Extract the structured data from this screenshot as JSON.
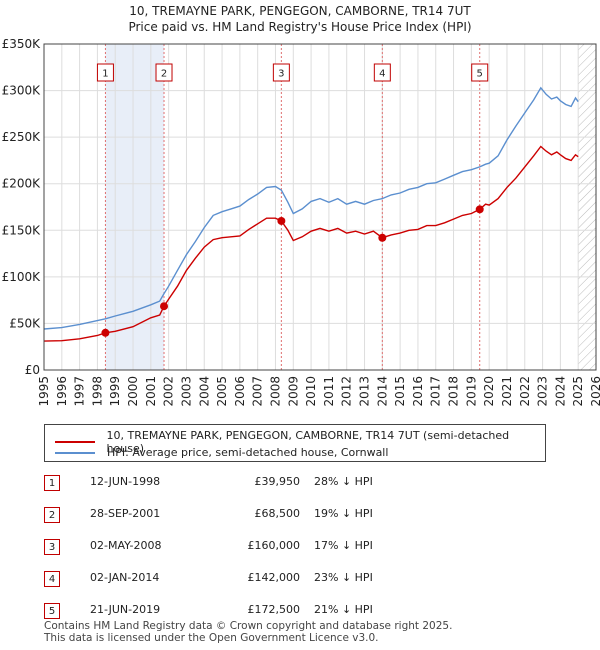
{
  "title_line1": "10, TREMAYNE PARK, PENGEGON, CAMBORNE, TR14 7UT",
  "title_line2": "Price paid vs. HM Land Registry's House Price Index (HPI)",
  "chart_data": {
    "type": "line",
    "xlim": [
      1995,
      2026
    ],
    "ylim": [
      0,
      350000
    ],
    "y_ticks": [
      0,
      50000,
      100000,
      150000,
      200000,
      250000,
      300000,
      350000
    ],
    "y_tick_labels": [
      "£0",
      "£50K",
      "£100K",
      "£150K",
      "£200K",
      "£250K",
      "£300K",
      "£350K"
    ],
    "x_ticks": [
      1995,
      1996,
      1997,
      1998,
      1999,
      2000,
      2001,
      2002,
      2003,
      2004,
      2005,
      2006,
      2007,
      2008,
      2009,
      2010,
      2011,
      2012,
      2013,
      2014,
      2015,
      2016,
      2017,
      2018,
      2019,
      2020,
      2021,
      2022,
      2023,
      2024,
      2025,
      2026
    ],
    "forecast_start": 2025.0,
    "colors": {
      "price_paid": "#cc0000",
      "hpi": "#5b8fcf",
      "sale_line": "#e07070",
      "shade": "#e8eef8",
      "grid": "#dddddd",
      "hatch": "#bbbbbb"
    },
    "series": [
      {
        "name": "10, TREMAYNE PARK, PENGEGON, CAMBORNE, TR14 7UT (semi-detached house)",
        "key": "price_paid",
        "points": [
          [
            1995.0,
            31000
          ],
          [
            1996.0,
            31500
          ],
          [
            1997.0,
            33500
          ],
          [
            1998.0,
            37000
          ],
          [
            1998.45,
            39950
          ],
          [
            1999.0,
            41500
          ],
          [
            2000.0,
            46500
          ],
          [
            2001.0,
            56000
          ],
          [
            2001.5,
            59000
          ],
          [
            2001.74,
            68500
          ],
          [
            2002.0,
            76000
          ],
          [
            2002.5,
            90000
          ],
          [
            2003.0,
            107000
          ],
          [
            2003.5,
            120000
          ],
          [
            2004.0,
            132000
          ],
          [
            2004.5,
            140000
          ],
          [
            2005.0,
            142000
          ],
          [
            2005.5,
            143000
          ],
          [
            2006.0,
            144000
          ],
          [
            2006.5,
            151000
          ],
          [
            2007.0,
            157000
          ],
          [
            2007.5,
            163000
          ],
          [
            2008.0,
            163000
          ],
          [
            2008.33,
            160000
          ],
          [
            2008.7,
            150000
          ],
          [
            2009.0,
            139000
          ],
          [
            2009.5,
            143000
          ],
          [
            2010.0,
            149000
          ],
          [
            2010.5,
            152000
          ],
          [
            2011.0,
            149000
          ],
          [
            2011.5,
            152000
          ],
          [
            2012.0,
            147000
          ],
          [
            2012.5,
            149000
          ],
          [
            2013.0,
            146000
          ],
          [
            2013.5,
            149000
          ],
          [
            2014.0,
            142000
          ],
          [
            2014.5,
            145000
          ],
          [
            2015.0,
            147000
          ],
          [
            2015.5,
            150000
          ],
          [
            2016.0,
            151000
          ],
          [
            2016.5,
            155000
          ],
          [
            2017.0,
            155000
          ],
          [
            2017.5,
            158000
          ],
          [
            2018.0,
            162000
          ],
          [
            2018.5,
            166000
          ],
          [
            2019.0,
            168000
          ],
          [
            2019.47,
            172500
          ],
          [
            2019.8,
            178000
          ],
          [
            2020.0,
            177000
          ],
          [
            2020.5,
            184000
          ],
          [
            2021.0,
            196000
          ],
          [
            2021.5,
            206000
          ],
          [
            2022.0,
            218000
          ],
          [
            2022.5,
            230000
          ],
          [
            2022.9,
            240000
          ],
          [
            2023.2,
            235000
          ],
          [
            2023.5,
            231000
          ],
          [
            2023.8,
            234000
          ],
          [
            2024.0,
            231000
          ],
          [
            2024.3,
            227000
          ],
          [
            2024.6,
            225000
          ],
          [
            2024.85,
            231000
          ],
          [
            2025.0,
            229000
          ]
        ]
      },
      {
        "name": "HPI: Average price, semi-detached house, Cornwall",
        "key": "hpi",
        "points": [
          [
            1995.0,
            44000
          ],
          [
            1996.0,
            45500
          ],
          [
            1997.0,
            49000
          ],
          [
            1998.0,
            53000
          ],
          [
            1998.45,
            55000
          ],
          [
            1999.0,
            58000
          ],
          [
            2000.0,
            63000
          ],
          [
            2001.0,
            70000
          ],
          [
            2001.5,
            74000
          ],
          [
            2001.74,
            82000
          ],
          [
            2002.0,
            90000
          ],
          [
            2002.5,
            107000
          ],
          [
            2003.0,
            124000
          ],
          [
            2003.5,
            138000
          ],
          [
            2004.0,
            153000
          ],
          [
            2004.5,
            166000
          ],
          [
            2005.0,
            170000
          ],
          [
            2005.5,
            173000
          ],
          [
            2006.0,
            176000
          ],
          [
            2006.5,
            183000
          ],
          [
            2007.0,
            189000
          ],
          [
            2007.5,
            196000
          ],
          [
            2008.0,
            197000
          ],
          [
            2008.33,
            193000
          ],
          [
            2008.7,
            180000
          ],
          [
            2009.0,
            168000
          ],
          [
            2009.5,
            173000
          ],
          [
            2010.0,
            181000
          ],
          [
            2010.5,
            184000
          ],
          [
            2011.0,
            180000
          ],
          [
            2011.5,
            184000
          ],
          [
            2012.0,
            178000
          ],
          [
            2012.5,
            181000
          ],
          [
            2013.0,
            178000
          ],
          [
            2013.5,
            182000
          ],
          [
            2014.0,
            184000
          ],
          [
            2014.5,
            188000
          ],
          [
            2015.0,
            190000
          ],
          [
            2015.5,
            194000
          ],
          [
            2016.0,
            196000
          ],
          [
            2016.5,
            200000
          ],
          [
            2017.0,
            201000
          ],
          [
            2017.5,
            205000
          ],
          [
            2018.0,
            209000
          ],
          [
            2018.5,
            213000
          ],
          [
            2019.0,
            215000
          ],
          [
            2019.47,
            218000
          ],
          [
            2019.8,
            221000
          ],
          [
            2020.0,
            222000
          ],
          [
            2020.5,
            230000
          ],
          [
            2021.0,
            247000
          ],
          [
            2021.5,
            262000
          ],
          [
            2022.0,
            276000
          ],
          [
            2022.5,
            290000
          ],
          [
            2022.9,
            303000
          ],
          [
            2023.2,
            296000
          ],
          [
            2023.5,
            291000
          ],
          [
            2023.8,
            293000
          ],
          [
            2024.0,
            289000
          ],
          [
            2024.3,
            285000
          ],
          [
            2024.6,
            283000
          ],
          [
            2024.85,
            292000
          ],
          [
            2025.0,
            288000
          ]
        ]
      }
    ],
    "sales": [
      {
        "num": "1",
        "x": 1998.45,
        "price": 39950
      },
      {
        "num": "2",
        "x": 2001.74,
        "price": 68500
      },
      {
        "num": "3",
        "x": 2008.33,
        "price": 160000
      },
      {
        "num": "4",
        "x": 2014.0,
        "price": 142000
      },
      {
        "num": "5",
        "x": 2019.47,
        "price": 172500
      }
    ]
  },
  "legend": {
    "price_paid_label": "10, TREMAYNE PARK, PENGEGON, CAMBORNE, TR14 7UT (semi-detached house)",
    "hpi_label": "HPI: Average price, semi-detached house, Cornwall"
  },
  "sales_table": [
    {
      "num": "1",
      "date": "12-JUN-1998",
      "price": "£39,950",
      "hpi": "28% ↓ HPI"
    },
    {
      "num": "2",
      "date": "28-SEP-2001",
      "price": "£68,500",
      "hpi": "19% ↓ HPI"
    },
    {
      "num": "3",
      "date": "02-MAY-2008",
      "price": "£160,000",
      "hpi": "17% ↓ HPI"
    },
    {
      "num": "4",
      "date": "02-JAN-2014",
      "price": "£142,000",
      "hpi": "23% ↓ HPI"
    },
    {
      "num": "5",
      "date": "21-JUN-2019",
      "price": "£172,500",
      "hpi": "21% ↓ HPI"
    }
  ],
  "footer_line1": "Contains HM Land Registry data © Crown copyright and database right 2025.",
  "footer_line2": "This data is licensed under the Open Government Licence v3.0."
}
